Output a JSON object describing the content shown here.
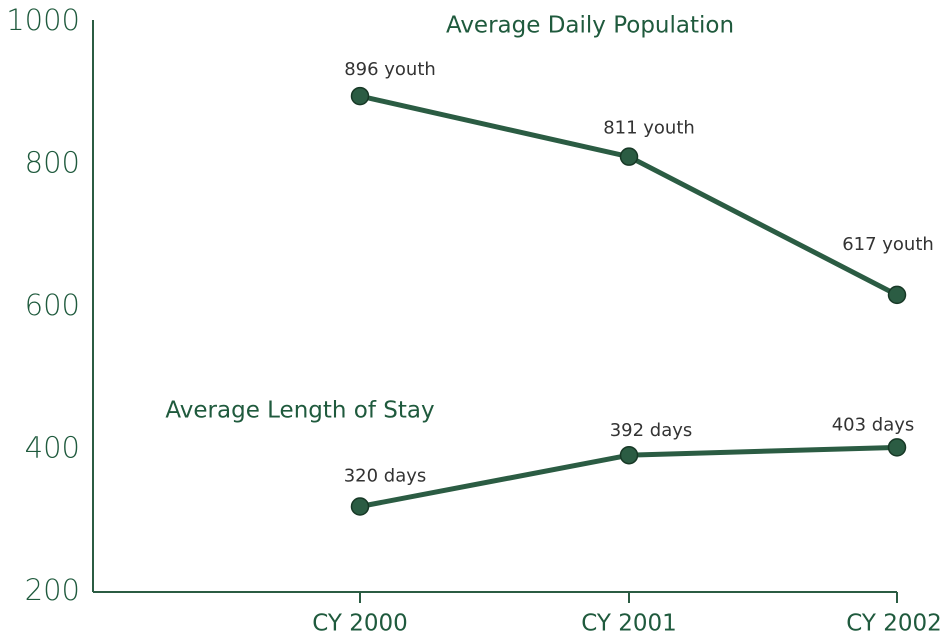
{
  "chart_data": {
    "type": "line",
    "categories": [
      "CY 2000",
      "CY 2001",
      "CY 2002"
    ],
    "series": [
      {
        "name": "Average Daily Population",
        "color": "#2b5c43",
        "values": [
          896,
          811,
          617
        ],
        "value_labels": [
          "896 youth",
          "811 youth",
          "617 youth"
        ]
      },
      {
        "name": "Average Length of Stay",
        "color": "#2b5c43",
        "values": [
          320,
          392,
          403
        ],
        "value_labels": [
          "320 days",
          "392 days",
          "403 days"
        ]
      }
    ],
    "ylim": [
      200,
      1000
    ],
    "yticks": [
      200,
      400,
      600,
      800,
      1000
    ],
    "grid": false
  }
}
